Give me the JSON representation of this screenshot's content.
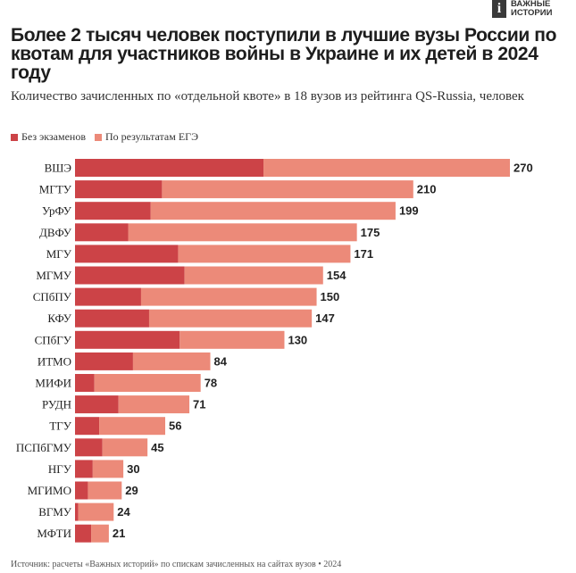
{
  "logo": {
    "mark": "i",
    "text": "ВАЖНЫЕ ИСТОРИИ"
  },
  "header": {
    "title": "Более 2 тысяч человек поступили в лучшие вузы России по квотам для участников войны в Украине и их детей в 2024 году",
    "subtitle": "Количество зачисленных по «отдельной квоте» в 18 вузов из рейтинга QS-Russia, человек"
  },
  "footer": {
    "source": "Источник: расчеты «Важных историй» по спискам зачисленных на сайтах вузов • 2024"
  },
  "chart_data": {
    "type": "bar",
    "orientation": "horizontal",
    "stacked": true,
    "categories": [
      "ВШЭ",
      "МГТУ",
      "УрФУ",
      "ДВФУ",
      "МГУ",
      "МГМУ",
      "СПбПУ",
      "КФУ",
      "СПбГУ",
      "ИТМО",
      "МИФИ",
      "РУДН",
      "ТГУ",
      "ПСПбГМУ",
      "НГУ",
      "МГИМО",
      "ВГМУ",
      "МФТИ"
    ],
    "series": [
      {
        "name": "Без экзаменов",
        "color": "#cc4347",
        "values": [
          117,
          54,
          47,
          33,
          64,
          68,
          41,
          46,
          65,
          36,
          12,
          27,
          15,
          17,
          11,
          8,
          2,
          10
        ]
      },
      {
        "name": "По результатам ЕГЭ",
        "color": "#ec8a79",
        "values": [
          153,
          156,
          152,
          142,
          107,
          86,
          109,
          101,
          65,
          48,
          66,
          44,
          41,
          28,
          19,
          21,
          22,
          11
        ]
      }
    ],
    "totals": [
      270,
      210,
      199,
      175,
      171,
      154,
      150,
      147,
      130,
      84,
      78,
      71,
      56,
      45,
      30,
      29,
      24,
      21
    ],
    "xlim": [
      0,
      270
    ],
    "grid": false,
    "legend_position": "top-left"
  }
}
